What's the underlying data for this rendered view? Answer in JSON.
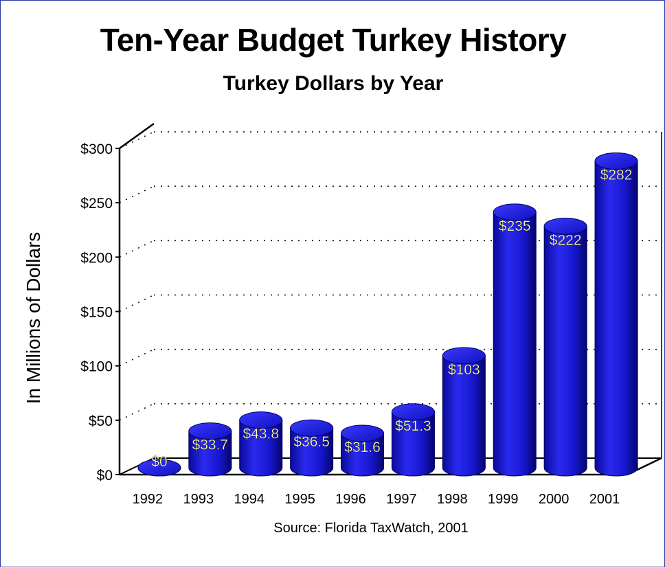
{
  "chart_data": {
    "type": "bar",
    "title": "Ten-Year Budget Turkey History",
    "subtitle": "Turkey Dollars by Year",
    "xlabel": "",
    "ylabel": "In Millions of Dollars",
    "source": "Source: Florida TaxWatch, 2001",
    "categories": [
      "1992",
      "1993",
      "1994",
      "1995",
      "1996",
      "1997",
      "1998",
      "1999",
      "2000",
      "2001"
    ],
    "values": [
      0,
      33.7,
      43.8,
      36.5,
      31.6,
      51.3,
      103,
      235,
      222,
      282
    ],
    "data_labels": [
      "$0",
      "$33.7",
      "$43.8",
      "$36.5",
      "$31.6",
      "$51.3",
      "$103",
      "$235",
      "$222",
      "$282"
    ],
    "y_ticks": [
      "$0",
      "$50",
      "$100",
      "$150",
      "$200",
      "$250",
      "$300"
    ],
    "y_tick_values": [
      0,
      50,
      100,
      150,
      200,
      250,
      300
    ],
    "ylim": [
      0,
      300
    ],
    "grid": true,
    "legend": "none",
    "bar_color": "#1a1ad8",
    "label_color": "#ffff99"
  }
}
